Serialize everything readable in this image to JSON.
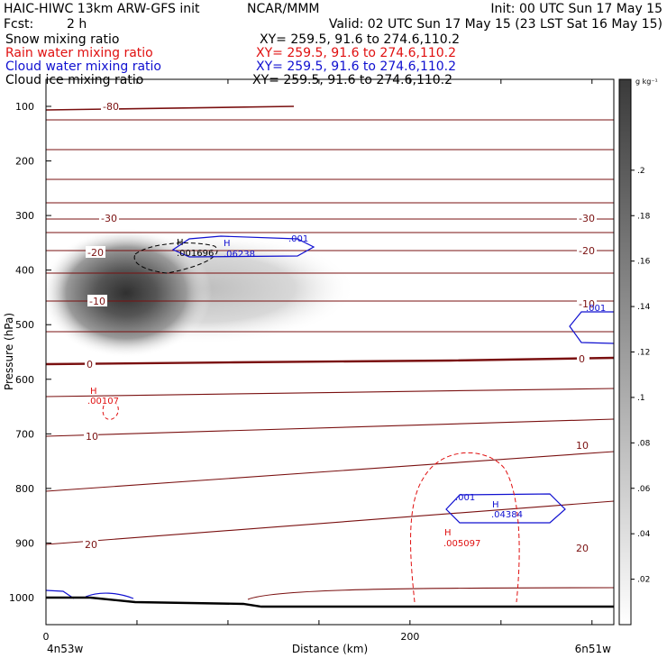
{
  "header": {
    "title_left": "HAIC-HIWC 13km ARW-GFS init",
    "title_center": "NCAR/MMM",
    "init_label": "Init: 00 UTC Sun 17 May 15",
    "fcst_label": "Fcst:",
    "fcst_value": "2 h",
    "valid_label": "Valid: 02 UTC Sun 17 May 15 (23 LST Sat 16 May 15)"
  },
  "legend": [
    {
      "label": "Snow mixing ratio",
      "xy": "XY=  259.5,  91.6  to  274.6,110.2",
      "color": "#000000"
    },
    {
      "label": "Rain water mixing ratio",
      "xy": "XY=  259.5,  91.6  to  274.6,110.2",
      "color": "#e01010"
    },
    {
      "label": "Cloud water mixing ratio",
      "xy": "XY=  259.5,  91.6  to  274.6,110.2",
      "color": "#1010d0"
    },
    {
      "label": "Cloud ice mixing ratio",
      "xy": "XY=  259.5,  91.6  to  274.6,110.2",
      "color": "#000000"
    }
  ],
  "chart_data": {
    "type": "contour",
    "ylabel": "Pressure (hPa)",
    "xlabel": "Distance (km)",
    "y_ticks": [
      "100",
      "200",
      "300",
      "400",
      "500",
      "600",
      "700",
      "800",
      "900",
      "1000"
    ],
    "x_ticks": [
      "0",
      "200"
    ],
    "x_end_labels": {
      "left": "4n53w",
      "right": "6n51w"
    },
    "ylim": [
      1050,
      50
    ],
    "xlim": [
      0,
      312
    ],
    "colorbar": {
      "unit": "g kg⁻¹",
      "ticks": [
        ".2",
        ".18",
        ".16",
        ".14",
        ".12",
        ".1",
        ".08",
        ".06",
        ".04",
        ".02"
      ]
    },
    "temperature_labels_left": [
      "-80",
      "-30",
      "-20",
      "-10",
      "0",
      "10",
      "20"
    ],
    "temperature_labels_right": [
      "-30",
      "-20",
      "-10",
      "0",
      "10",
      "20"
    ],
    "annotations": [
      {
        "text": "H",
        "value": ".001696",
        "color": "#000000"
      },
      {
        "text": "H",
        "value": ".06238",
        "color": "#1010d0"
      },
      {
        "text": ".001",
        "color": "#1010d0"
      },
      {
        "text": ".001",
        "color": "#1010d0",
        "side": "right"
      },
      {
        "text": "H",
        "value": ".00107",
        "color": "#e01010"
      },
      {
        "text": ".001",
        "color": "#1010d0",
        "side": "lower"
      },
      {
        "text": "H",
        "value": ".04384",
        "color": "#1010d0"
      },
      {
        "text": "H",
        "value": ".005097",
        "color": "#e01010"
      }
    ]
  }
}
